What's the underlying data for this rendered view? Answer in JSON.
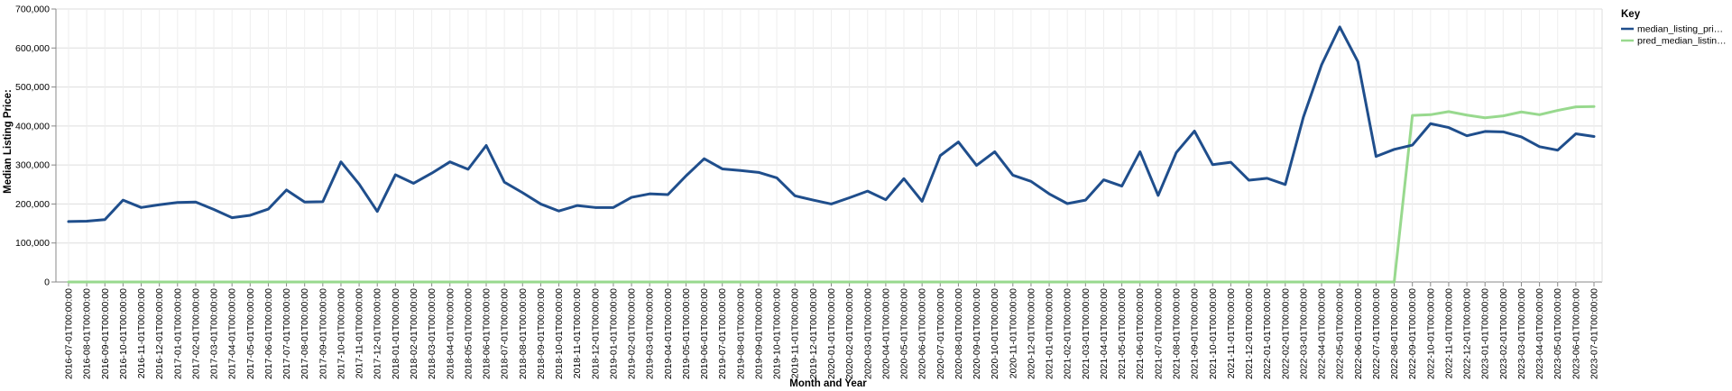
{
  "chart_data": {
    "type": "line",
    "xlabel": "Month and Year",
    "ylabel": "Median Listing Price:",
    "ylim": [
      0,
      700000
    ],
    "yticks": [
      "0",
      "100,000",
      "200,000",
      "300,000",
      "400,000",
      "500,000",
      "600,000",
      "700,000"
    ],
    "grid": true,
    "legend": {
      "title": "Key",
      "position": "top-right"
    },
    "x": [
      "2016-07-01T00:00:00",
      "2016-08-01T00:00:00",
      "2016-09-01T00:00:00",
      "2016-10-01T00:00:00",
      "2016-11-01T00:00:00",
      "2016-12-01T00:00:00",
      "2017-01-01T00:00:00",
      "2017-02-01T00:00:00",
      "2017-03-01T00:00:00",
      "2017-04-01T00:00:00",
      "2017-05-01T00:00:00",
      "2017-06-01T00:00:00",
      "2017-07-01T00:00:00",
      "2017-08-01T00:00:00",
      "2017-09-01T00:00:00",
      "2017-10-01T00:00:00",
      "2017-11-01T00:00:00",
      "2017-12-01T00:00:00",
      "2018-01-01T00:00:00",
      "2018-02-01T00:00:00",
      "2018-03-01T00:00:00",
      "2018-04-01T00:00:00",
      "2018-05-01T00:00:00",
      "2018-06-01T00:00:00",
      "2018-07-01T00:00:00",
      "2018-08-01T00:00:00",
      "2018-09-01T00:00:00",
      "2018-10-01T00:00:00",
      "2018-11-01T00:00:00",
      "2018-12-01T00:00:00",
      "2019-01-01T00:00:00",
      "2019-02-01T00:00:00",
      "2019-03-01T00:00:00",
      "2019-04-01T00:00:00",
      "2019-05-01T00:00:00",
      "2019-06-01T00:00:00",
      "2019-07-01T00:00:00",
      "2019-08-01T00:00:00",
      "2019-09-01T00:00:00",
      "2019-10-01T00:00:00",
      "2019-11-01T00:00:00",
      "2019-12-01T00:00:00",
      "2020-01-01T00:00:00",
      "2020-02-01T00:00:00",
      "2020-03-01T00:00:00",
      "2020-04-01T00:00:00",
      "2020-05-01T00:00:00",
      "2020-06-01T00:00:00",
      "2020-07-01T00:00:00",
      "2020-08-01T00:00:00",
      "2020-09-01T00:00:00",
      "2020-10-01T00:00:00",
      "2020-11-01T00:00:00",
      "2020-12-01T00:00:00",
      "2021-01-01T00:00:00",
      "2021-02-01T00:00:00",
      "2021-03-01T00:00:00",
      "2021-04-01T00:00:00",
      "2021-05-01T00:00:00",
      "2021-06-01T00:00:00",
      "2021-07-01T00:00:00",
      "2021-08-01T00:00:00",
      "2021-09-01T00:00:00",
      "2021-10-01T00:00:00",
      "2021-11-01T00:00:00",
      "2021-12-01T00:00:00",
      "2022-01-01T00:00:00",
      "2022-02-01T00:00:00",
      "2022-03-01T00:00:00",
      "2022-04-01T00:00:00",
      "2022-05-01T00:00:00",
      "2022-06-01T00:00:00",
      "2022-07-01T00:00:00",
      "2022-08-01T00:00:00",
      "2022-09-01T00:00:00",
      "2022-10-01T00:00:00",
      "2022-11-01T00:00:00",
      "2022-12-01T00:00:00",
      "2023-01-01T00:00:00",
      "2023-02-01T00:00:00",
      "2023-03-01T00:00:00",
      "2023-04-01T00:00:00",
      "2023-05-01T00:00:00",
      "2023-06-01T00:00:00",
      "2023-07-01T00:00:00"
    ],
    "series": [
      {
        "name": "median_listing_pri…",
        "color": "#1f4e8c",
        "values": [
          155000,
          156000,
          160000,
          210000,
          191000,
          198000,
          204000,
          205000,
          186000,
          165000,
          171000,
          187000,
          236000,
          205000,
          206000,
          308000,
          251000,
          181000,
          275000,
          253000,
          279000,
          308000,
          289000,
          350000,
          256000,
          229000,
          200000,
          182000,
          196000,
          191000,
          191000,
          217000,
          226000,
          224000,
          272000,
          316000,
          290000,
          286000,
          281000,
          267000,
          221000,
          210000,
          200000,
          216000,
          233000,
          211000,
          265000,
          207000,
          324000,
          359000,
          299000,
          334000,
          274000,
          258000,
          226000,
          201000,
          210000,
          262000,
          246000,
          334000,
          222000,
          332000,
          387000,
          301000,
          307000,
          261000,
          266000,
          250000,
          423000,
          557000,
          654000,
          565000,
          322000,
          340000,
          351000,
          406000,
          396000,
          375000,
          386000,
          385000,
          372000,
          347000,
          338000,
          380000,
          373000
        ]
      },
      {
        "name": "pred_median_listin…",
        "color": "#98d98e",
        "values": [
          0,
          0,
          0,
          0,
          0,
          0,
          0,
          0,
          0,
          0,
          0,
          0,
          0,
          0,
          0,
          0,
          0,
          0,
          0,
          0,
          0,
          0,
          0,
          0,
          0,
          0,
          0,
          0,
          0,
          0,
          0,
          0,
          0,
          0,
          0,
          0,
          0,
          0,
          0,
          0,
          0,
          0,
          0,
          0,
          0,
          0,
          0,
          0,
          0,
          0,
          0,
          0,
          0,
          0,
          0,
          0,
          0,
          0,
          0,
          0,
          0,
          0,
          0,
          0,
          0,
          0,
          0,
          0,
          0,
          0,
          0,
          0,
          0,
          0,
          427000,
          429000,
          437000,
          428000,
          421000,
          426000,
          436000,
          429000,
          440000,
          449000,
          450000
        ]
      }
    ]
  }
}
